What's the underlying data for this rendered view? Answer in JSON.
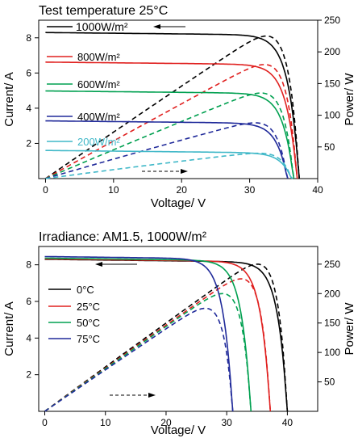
{
  "chart_data": [
    {
      "type": "line",
      "title": "Test temperature 25°C",
      "xlabel": "Voltage/ V",
      "ylabel_left": "Current/ A",
      "ylabel_right": "Power/ W",
      "xlim": [
        -1,
        40
      ],
      "xticks": [
        0,
        10,
        20,
        30,
        40
      ],
      "ylim_left": [
        0,
        9.0
      ],
      "yticks_left": [
        2,
        4,
        6,
        8
      ],
      "ylim_right": [
        0,
        250
      ],
      "yticks_right": [
        50,
        100,
        150,
        200,
        250
      ],
      "grid": false,
      "series": [
        {
          "name": "1000W/m²",
          "color": "#000000",
          "isc": 8.3,
          "voc": 37.3,
          "pmax_v": 30.6,
          "pmax": 225
        },
        {
          "name": "800W/m²",
          "color": "#e0201f",
          "isc": 6.62,
          "voc": 37.0,
          "pmax_v": 30.3,
          "pmax": 180
        },
        {
          "name": "600W/m²",
          "color": "#00a050",
          "isc": 4.98,
          "voc": 36.5,
          "pmax_v": 29.6,
          "pmax": 135
        },
        {
          "name": "400W/m²",
          "color": "#202a9a",
          "isc": 3.28,
          "voc": 35.6,
          "pmax_v": 29.0,
          "pmax": 88
        },
        {
          "name": "200W/m²",
          "color": "#40b8c8",
          "isc": 1.6,
          "voc": 36.3,
          "pmax_v": 26.0,
          "pmax": 40
        }
      ],
      "annotations": [
        "solid lines: current (left axis)",
        "dashed lines: power (right axis)"
      ]
    },
    {
      "type": "line",
      "title": "Irradiance: AM1.5, 1000W/m²",
      "xlabel": "Voltage/ V",
      "ylabel_left": "Current/ A",
      "ylabel_right": "Power/ W",
      "xlim": [
        -1,
        45
      ],
      "xticks": [
        0,
        10,
        20,
        30,
        40
      ],
      "ylim_left": [
        0,
        9.0
      ],
      "yticks_left": [
        2,
        4,
        6,
        8
      ],
      "ylim_right": [
        0,
        280
      ],
      "yticks_right": [
        50,
        100,
        150,
        200,
        250
      ],
      "grid": false,
      "series": [
        {
          "name": "0°C",
          "color": "#000000",
          "isc": 8.3,
          "voc": 40.0,
          "pmax_v": 32.5,
          "pmax": 250
        },
        {
          "name": "25°C",
          "color": "#e0201f",
          "isc": 8.32,
          "voc": 37.2,
          "pmax_v": 29.8,
          "pmax": 225
        },
        {
          "name": "50°C",
          "color": "#00a050",
          "isc": 8.36,
          "voc": 34.0,
          "pmax_v": 27.0,
          "pmax": 200
        },
        {
          "name": "75°C",
          "color": "#202a9a",
          "isc": 8.45,
          "voc": 31.0,
          "pmax_v": 23.8,
          "pmax": 175
        }
      ]
    }
  ]
}
